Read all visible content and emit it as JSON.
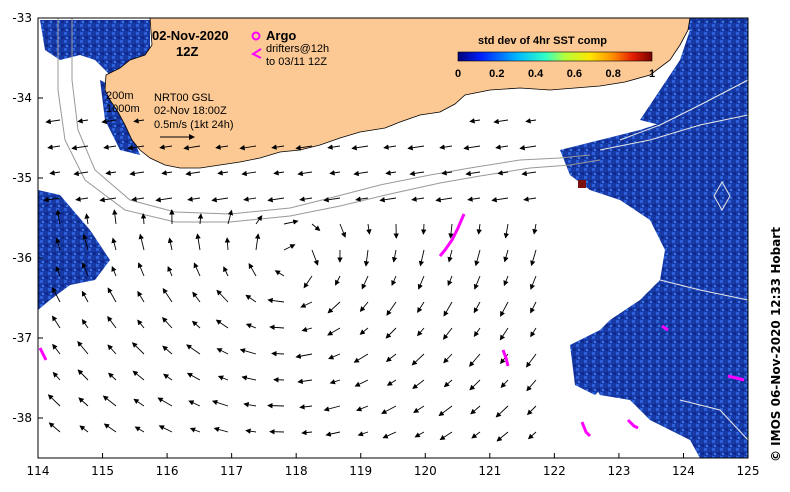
{
  "map": {
    "x_ticks": [
      "114",
      "115",
      "116",
      "117",
      "118",
      "119",
      "120",
      "121",
      "122",
      "123",
      "124",
      "125"
    ],
    "y_ticks": [
      "-33",
      "-34",
      "-35",
      "-36",
      "-37",
      "-38"
    ],
    "date_line1": "02-Nov-2020",
    "date_line2": "12Z",
    "legend_argo": "Argo",
    "legend_drifters_line1": "drifters@12h",
    "legend_drifters_line2": "to 03/11 12Z",
    "depth_label_1": "200m",
    "depth_label_2": "1000m",
    "product_line1": "NRT00 GSL",
    "product_line2": "02-Nov 18:00Z",
    "scale_label": "0.5m/s (1kt 24h)",
    "colorbar_title": "std dev of 4hr SST comp",
    "colorbar_ticks": [
      "0",
      "0.2",
      "0.4",
      "0.6",
      "0.8",
      "1"
    ],
    "credit": "© IMOS 06-Nov-2020 12:33 Hobart"
  },
  "colors": {
    "land": "#fcc994",
    "ocean_data": "#1a3ca8",
    "ocean_data_light": "#2a5fd6",
    "argo_drifter": "#ff00ff",
    "vector": "#000000"
  }
}
